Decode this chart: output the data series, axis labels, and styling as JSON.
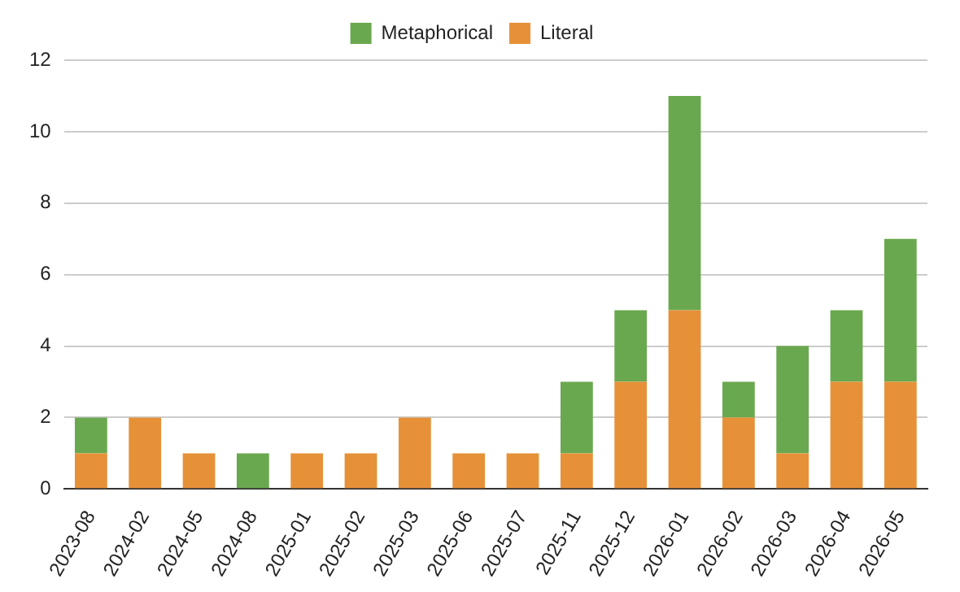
{
  "chart_data": {
    "type": "bar",
    "stacked": true,
    "categories": [
      "2023-08",
      "2024-02",
      "2024-05",
      "2024-08",
      "2025-01",
      "2025-02",
      "2025-03",
      "2025-06",
      "2025-07",
      "2025-11",
      "2025-12",
      "2026-01",
      "2026-02",
      "2026-03",
      "2026-04",
      "2026-05"
    ],
    "series": [
      {
        "name": "Literal",
        "color": "#e69138",
        "values": [
          1,
          2,
          1,
          0,
          1,
          1,
          2,
          1,
          1,
          1,
          3,
          5,
          2,
          1,
          3,
          3
        ]
      },
      {
        "name": "Metaphorical",
        "color": "#6aa84f",
        "values": [
          1,
          0,
          0,
          1,
          0,
          0,
          0,
          0,
          0,
          2,
          2,
          6,
          1,
          3,
          2,
          4
        ]
      }
    ],
    "ylim": [
      0,
      12
    ],
    "yticks": [
      0,
      2,
      4,
      6,
      8,
      10,
      12
    ],
    "grid": "y",
    "legend": "top"
  }
}
